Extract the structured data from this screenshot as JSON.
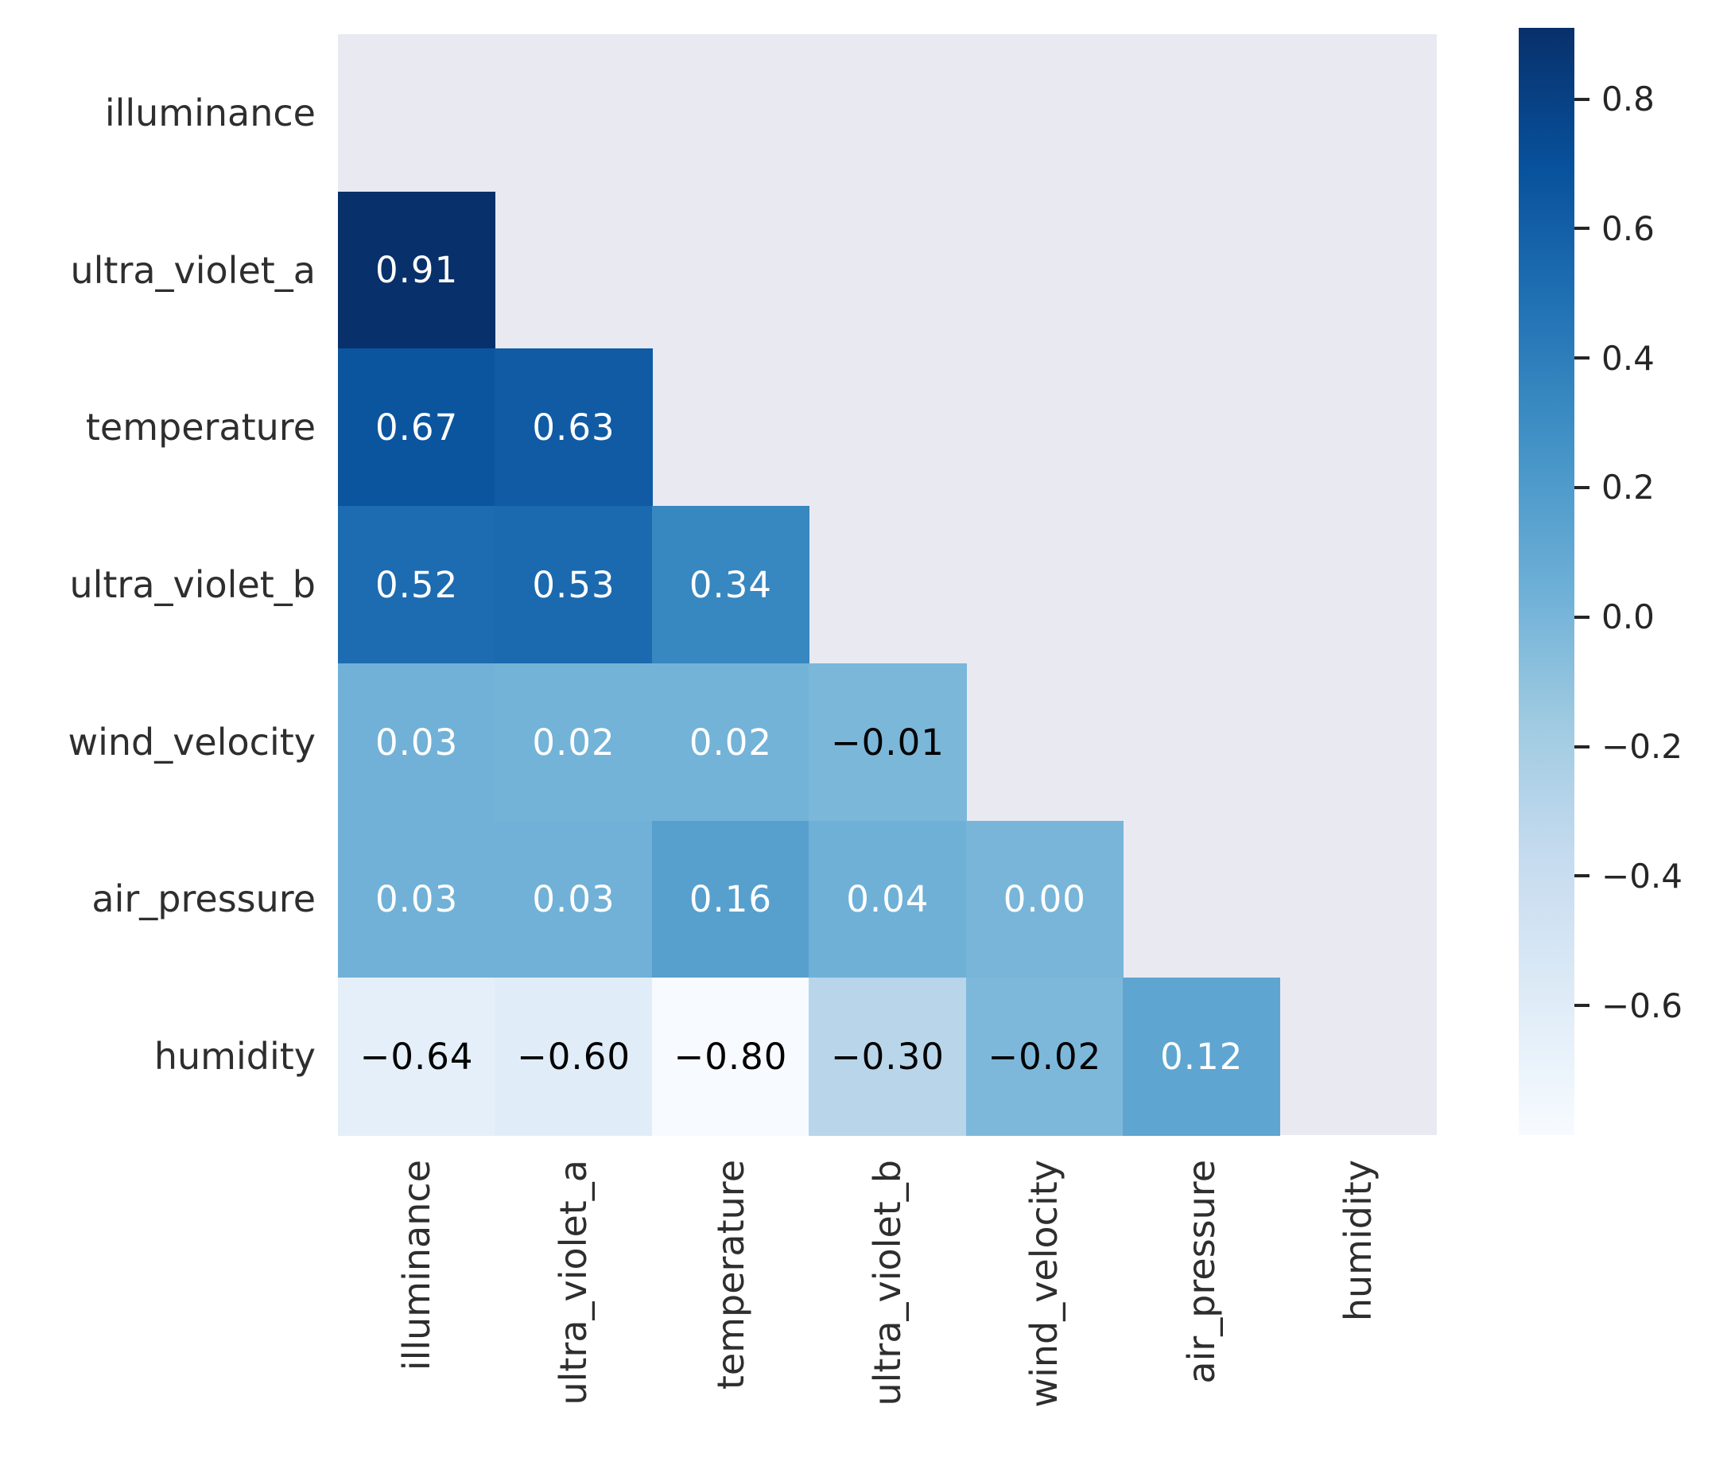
{
  "chart_data": {
    "type": "heatmap",
    "description": "Lower-triangle correlation matrix heatmap, Blues colormap, upper triangle and diagonal masked",
    "variables": [
      "illuminance",
      "ultra_violet_a",
      "temperature",
      "ultra_violet_b",
      "wind_velocity",
      "air_pressure",
      "humidity"
    ],
    "x_tick_labels": [
      "illuminance",
      "ultra_violet_a",
      "temperature",
      "ultra_violet_b",
      "wind_velocity",
      "air_pressure",
      "humidity"
    ],
    "y_tick_labels": [
      "illuminance",
      "ultra_violet_a",
      "temperature",
      "ultra_violet_b",
      "wind_velocity",
      "air_pressure",
      "humidity"
    ],
    "mask": "upper_triangle_and_diagonal",
    "mask_color": "#e9e9f2",
    "background_color": "#ffffff",
    "cells": [
      {
        "row": 1,
        "col": 0,
        "value": 0.91,
        "label": "0.91",
        "bg": "#08306b",
        "text": "#ffffff"
      },
      {
        "row": 2,
        "col": 0,
        "value": 0.67,
        "label": "0.67",
        "bg": "#0b559f",
        "text": "#ffffff"
      },
      {
        "row": 2,
        "col": 1,
        "value": 0.63,
        "label": "0.63",
        "bg": "#105ba4",
        "text": "#ffffff"
      },
      {
        "row": 3,
        "col": 0,
        "value": 0.52,
        "label": "0.52",
        "bg": "#1d6bb1",
        "text": "#ffffff"
      },
      {
        "row": 3,
        "col": 1,
        "value": 0.53,
        "label": "0.53",
        "bg": "#1b6aaf",
        "text": "#ffffff"
      },
      {
        "row": 3,
        "col": 2,
        "value": 0.34,
        "label": "0.34",
        "bg": "#3787c0",
        "text": "#ffffff"
      },
      {
        "row": 4,
        "col": 0,
        "value": 0.03,
        "label": "0.03",
        "bg": "#71b1d7",
        "text": "#ffffff"
      },
      {
        "row": 4,
        "col": 1,
        "value": 0.02,
        "label": "0.02",
        "bg": "#73b3d8",
        "text": "#ffffff"
      },
      {
        "row": 4,
        "col": 2,
        "value": 0.02,
        "label": "0.02",
        "bg": "#73b3d8",
        "text": "#ffffff"
      },
      {
        "row": 4,
        "col": 3,
        "value": -0.01,
        "label": "−0.01",
        "bg": "#7bb7d9",
        "text": "#000000"
      },
      {
        "row": 5,
        "col": 0,
        "value": 0.03,
        "label": "0.03",
        "bg": "#71b1d7",
        "text": "#ffffff"
      },
      {
        "row": 5,
        "col": 1,
        "value": 0.03,
        "label": "0.03",
        "bg": "#71b1d7",
        "text": "#ffffff"
      },
      {
        "row": 5,
        "col": 2,
        "value": 0.16,
        "label": "0.16",
        "bg": "#57a0ce",
        "text": "#ffffff"
      },
      {
        "row": 5,
        "col": 3,
        "value": 0.04,
        "label": "0.04",
        "bg": "#6fb0d7",
        "text": "#ffffff"
      },
      {
        "row": 5,
        "col": 4,
        "value": 0.0,
        "label": "0.00",
        "bg": "#78b5d9",
        "text": "#ffffff"
      },
      {
        "row": 6,
        "col": 0,
        "value": -0.64,
        "label": "−0.64",
        "bg": "#e4eff9",
        "text": "#000000"
      },
      {
        "row": 6,
        "col": 1,
        "value": -0.6,
        "label": "−0.60",
        "bg": "#e0ecf7",
        "text": "#000000"
      },
      {
        "row": 6,
        "col": 2,
        "value": -0.8,
        "label": "−0.80",
        "bg": "#f7fbff",
        "text": "#000000"
      },
      {
        "row": 6,
        "col": 3,
        "value": -0.3,
        "label": "−0.30",
        "bg": "#b8d5ea",
        "text": "#000000"
      },
      {
        "row": 6,
        "col": 4,
        "value": -0.02,
        "label": "−0.02",
        "bg": "#7db8da",
        "text": "#000000"
      },
      {
        "row": 6,
        "col": 5,
        "value": 0.12,
        "label": "0.12",
        "bg": "#5ea6d1",
        "text": "#ffffff"
      }
    ],
    "colorbar": {
      "colormap": "Blues",
      "vmin": -0.8,
      "vmax": 0.91,
      "gradient_stops": [
        "#f7fbff",
        "#deebf7",
        "#c6dbef",
        "#9ecae1",
        "#6baed6",
        "#4292c6",
        "#2171b5",
        "#08519c",
        "#08306b"
      ],
      "ticks": [
        {
          "value": 0.8,
          "label": "0.8"
        },
        {
          "value": 0.6,
          "label": "0.6"
        },
        {
          "value": 0.4,
          "label": "0.4"
        },
        {
          "value": 0.2,
          "label": "0.2"
        },
        {
          "value": 0.0,
          "label": "0.0"
        },
        {
          "value": -0.2,
          "label": "−0.2"
        },
        {
          "value": -0.4,
          "label": "−0.4"
        },
        {
          "value": -0.6,
          "label": "−0.6"
        }
      ],
      "tick_color": "#262626"
    },
    "legend_position": "right",
    "grid": false,
    "title": "",
    "xlabel": "",
    "ylabel": ""
  }
}
